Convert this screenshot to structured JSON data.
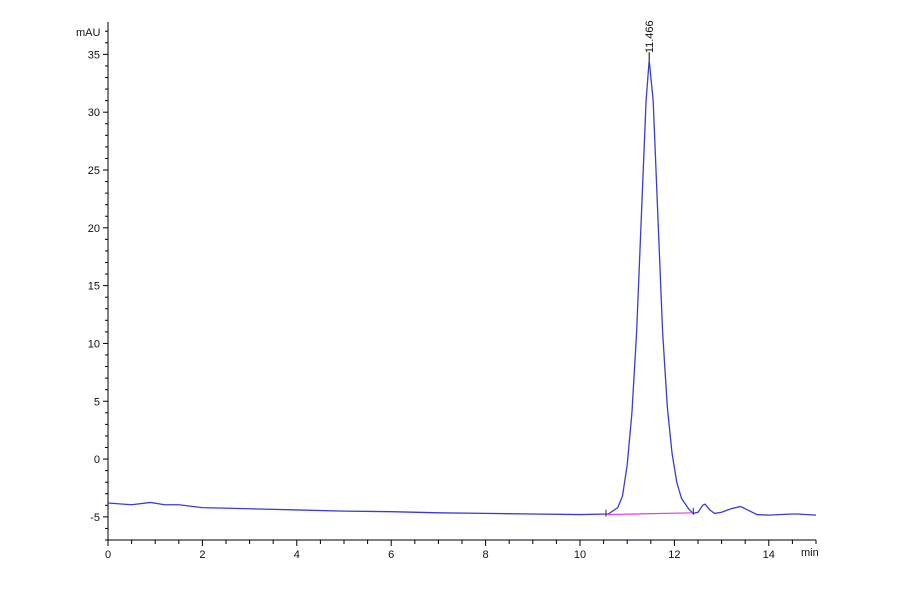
{
  "chart_data": {
    "type": "line",
    "title": "",
    "xlabel": "min",
    "ylabel": "mAU",
    "xlim": [
      0,
      15
    ],
    "ylim": [
      -7,
      37.8
    ],
    "xticks": [
      0,
      2,
      4,
      6,
      8,
      10,
      12,
      14
    ],
    "yticks": [
      -5,
      0,
      5,
      10,
      15,
      20,
      25,
      30,
      35
    ],
    "grid": false,
    "colors": {
      "trace": "#3b3bd6",
      "baseline": "#e040e0",
      "axis": "#000000"
    },
    "series": [
      {
        "x": [
          0,
          0.5,
          0.9,
          1.2,
          1.5,
          2,
          3,
          4,
          5,
          6,
          7,
          8,
          9,
          10,
          10.6,
          10.8,
          10.9,
          11.0,
          11.1,
          11.2,
          11.3,
          11.4,
          11.466,
          11.55,
          11.65,
          11.75,
          11.85,
          11.95,
          12.05,
          12.15,
          12.3,
          12.4,
          12.5,
          12.6,
          12.65,
          12.75,
          12.85,
          13.0,
          13.2,
          13.4,
          13.55,
          13.75,
          14.0,
          14.5,
          14.6,
          15
        ],
        "y": [
          -3.8,
          -3.95,
          -3.75,
          -3.95,
          -3.95,
          -4.2,
          -4.3,
          -4.4,
          -4.5,
          -4.55,
          -4.65,
          -4.7,
          -4.75,
          -4.8,
          -4.75,
          -4.2,
          -3.2,
          -0.5,
          4,
          11,
          21,
          31,
          34.5,
          31,
          21,
          11,
          4.5,
          0.5,
          -2,
          -3.4,
          -4.3,
          -4.7,
          -4.6,
          -4.0,
          -3.9,
          -4.4,
          -4.7,
          -4.6,
          -4.3,
          -4.1,
          -4.4,
          -4.8,
          -4.85,
          -4.75,
          -4.75,
          -4.85
        ]
      }
    ],
    "integration_baseline": {
      "x": [
        10.55,
        12.4
      ],
      "y": [
        -4.8,
        -4.65
      ]
    },
    "annotations": [
      {
        "label": "11.466",
        "x": 11.466,
        "y": 34.5
      }
    ]
  }
}
